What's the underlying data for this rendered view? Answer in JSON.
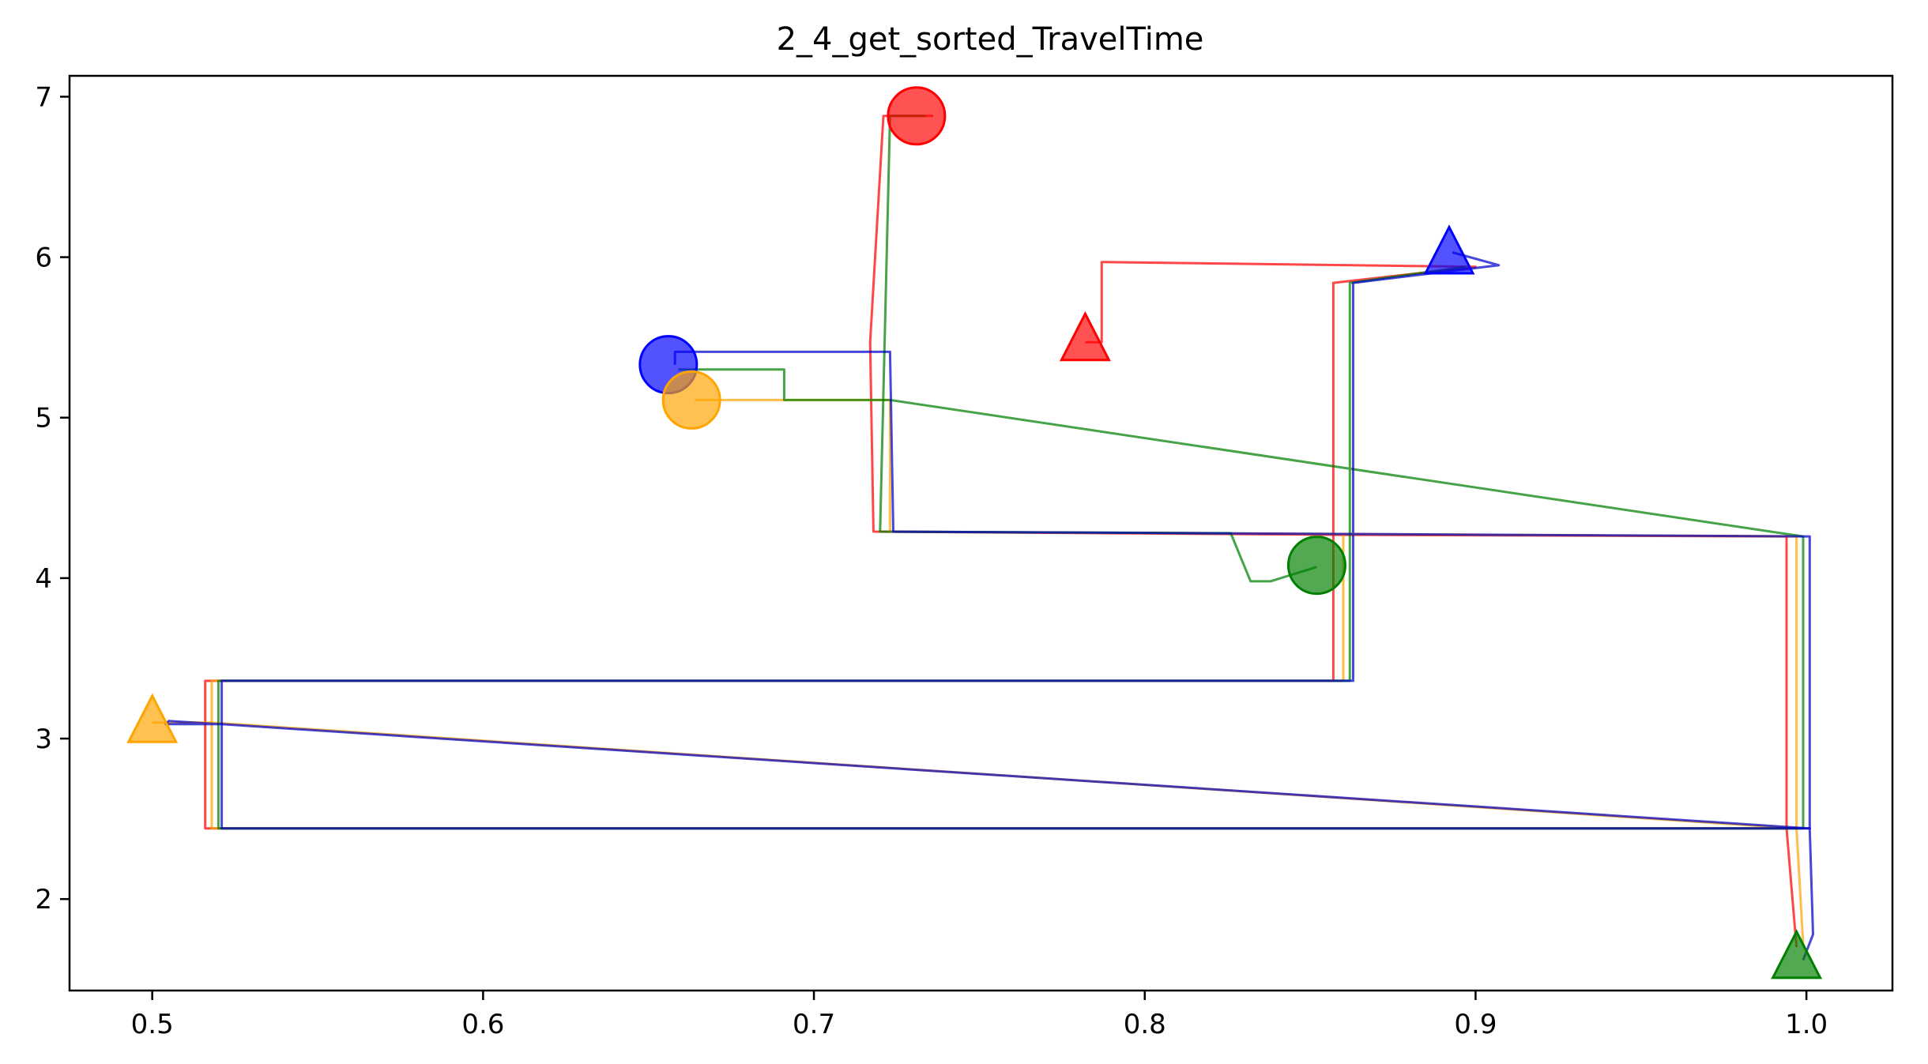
{
  "chart_data": {
    "type": "line",
    "title": "2_4_get_sorted_TravelTime",
    "xlabel": "",
    "ylabel": "",
    "xlim": [
      0.475,
      1.026
    ],
    "ylim": [
      1.43,
      7.13
    ],
    "x_ticks": [
      0.5,
      0.6,
      0.7,
      0.8,
      0.9,
      1.0
    ],
    "x_tick_labels": [
      "0.5",
      "0.6",
      "0.7",
      "0.8",
      "0.9",
      "1.0"
    ],
    "y_ticks": [
      2,
      3,
      4,
      5,
      6,
      7
    ],
    "y_tick_labels": [
      "2",
      "3",
      "4",
      "5",
      "6",
      "7"
    ],
    "grid": false,
    "legend": "none",
    "series": [
      {
        "color": "#ff0000",
        "points": [
          [
            0.736,
            6.88
          ],
          [
            0.721,
            6.88
          ],
          [
            0.717,
            5.47
          ],
          [
            0.718,
            4.29
          ],
          [
            0.857,
            4.27
          ],
          [
            0.857,
            5.84
          ],
          [
            0.9,
            5.94
          ],
          [
            0.787,
            5.97
          ],
          [
            0.787,
            5.47
          ],
          [
            0.782,
            5.47
          ]
        ],
        "extra_points": [
          [
            0.997,
            1.7
          ],
          [
            0.994,
            2.44
          ],
          [
            0.516,
            2.44
          ],
          [
            0.516,
            3.36
          ],
          [
            0.857,
            3.36
          ],
          [
            0.857,
            4.27
          ],
          [
            0.994,
            4.26
          ],
          [
            0.994,
            2.44
          ]
        ]
      },
      {
        "color": "#ffa500",
        "points": [
          [
            0.664,
            5.11
          ],
          [
            0.723,
            5.11
          ],
          [
            0.723,
            4.29
          ],
          [
            0.997,
            4.26
          ],
          [
            0.997,
            2.44
          ],
          [
            0.518,
            2.44
          ],
          [
            0.518,
            3.36
          ],
          [
            0.86,
            3.36
          ],
          [
            0.86,
            4.27
          ]
        ],
        "extra_points": [
          [
            0.999,
            1.72
          ],
          [
            0.997,
            2.44
          ],
          [
            0.518,
            3.1
          ],
          [
            0.5,
            3.1
          ]
        ]
      },
      {
        "color": "#008000",
        "points": [
          [
            0.734,
            6.88
          ],
          [
            0.723,
            6.88
          ],
          [
            0.72,
            4.29
          ],
          [
            0.826,
            4.28
          ],
          [
            0.832,
            3.98
          ],
          [
            0.838,
            3.98
          ],
          [
            0.852,
            4.07
          ]
        ],
        "extra_points": [
          [
            0.659,
            5.3
          ],
          [
            0.691,
            5.3
          ],
          [
            0.691,
            5.11
          ],
          [
            0.723,
            5.11
          ],
          [
            0.999,
            4.26
          ],
          [
            0.999,
            2.44
          ],
          [
            0.52,
            2.44
          ],
          [
            0.52,
            3.36
          ],
          [
            0.862,
            3.36
          ],
          [
            0.862,
            5.84
          ],
          [
            0.897,
            5.94
          ]
        ]
      },
      {
        "color": "#0000cc",
        "points": [
          [
            0.658,
            5.33
          ],
          [
            0.658,
            5.41
          ],
          [
            0.723,
            5.41
          ],
          [
            0.724,
            4.29
          ],
          [
            1.001,
            4.26
          ],
          [
            1.001,
            2.44
          ],
          [
            0.521,
            2.44
          ],
          [
            0.521,
            3.36
          ],
          [
            0.863,
            3.36
          ],
          [
            0.863,
            5.84
          ],
          [
            0.907,
            5.95
          ],
          [
            0.893,
            6.03
          ]
        ],
        "extra_points": [
          [
            0.999,
            1.62
          ],
          [
            1.002,
            1.78
          ],
          [
            1.001,
            2.44
          ],
          [
            0.521,
            3.09
          ],
          [
            0.504,
            3.09
          ],
          [
            0.505,
            3.11
          ],
          [
            0.52,
            3.09
          ]
        ]
      }
    ],
    "circles": [
      {
        "color": "#ff0000",
        "x": 0.731,
        "y": 6.88
      },
      {
        "color": "#0000ff",
        "x": 0.656,
        "y": 5.33
      },
      {
        "color": "#ffa500",
        "x": 0.663,
        "y": 5.11
      },
      {
        "color": "#008000",
        "x": 0.852,
        "y": 4.08
      }
    ],
    "triangles": [
      {
        "color": "#ff0000",
        "x": 0.782,
        "y": 5.47
      },
      {
        "color": "#0000ff",
        "x": 0.892,
        "y": 6.01
      },
      {
        "color": "#ffa500",
        "x": 0.5,
        "y": 3.09
      },
      {
        "color": "#008000",
        "x": 0.997,
        "y": 1.62
      }
    ]
  }
}
